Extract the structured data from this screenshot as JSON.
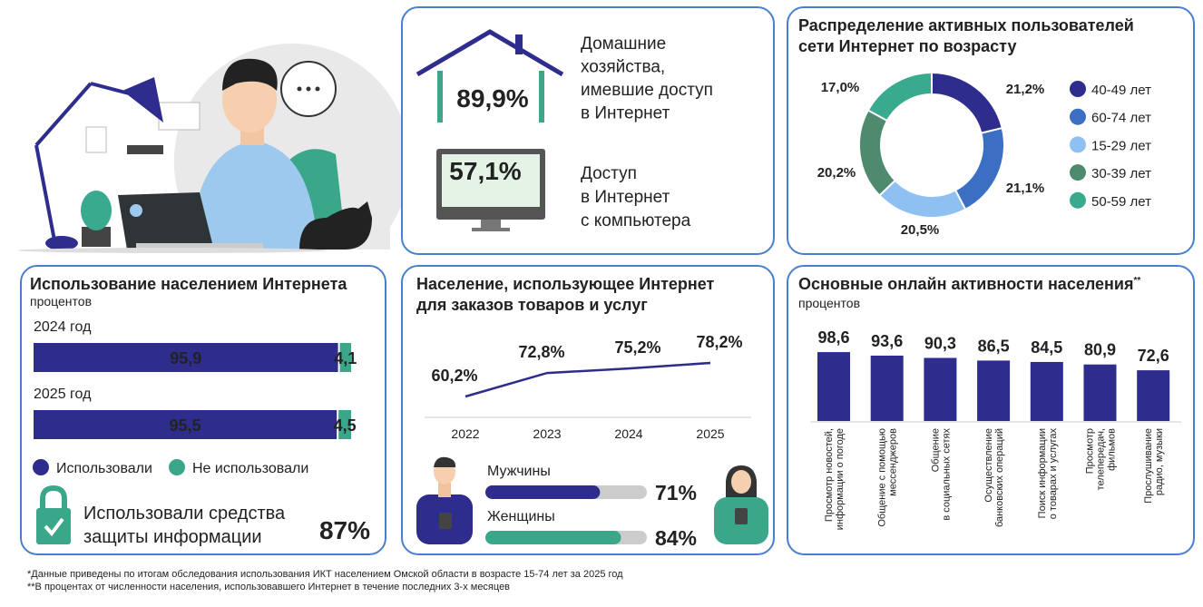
{
  "household": {
    "value_label": "89,9%",
    "lines": [
      "Домашние",
      "хозяйства,",
      "имевшие доступ",
      "в Интернет"
    ]
  },
  "computer": {
    "value_label": "57,1%",
    "lines": [
      "Доступ",
      "в Интернет",
      "с компьютера"
    ]
  },
  "protection": {
    "lines": [
      "Использовали средства",
      "защиты информации"
    ],
    "value_label": "87%"
  },
  "chart_data": [
    {
      "type": "pie",
      "donut": true,
      "title": [
        "Распределение активных пользователей",
        "сети Интернет по возрасту"
      ],
      "categories": [
        "40-49 лет",
        "60-74 лет",
        "15-29 лет",
        "30-39 лет",
        "50-59 лет"
      ],
      "values": [
        21.2,
        21.1,
        20.5,
        20.2,
        17.0
      ],
      "value_labels": [
        "21,2%",
        "21,1%",
        "20,5%",
        "20,2%",
        "17,0%"
      ],
      "colors": [
        "#2e2c8c",
        "#3a6fc4",
        "#8fc0f2",
        "#4d8a6e",
        "#3aaa8e"
      ]
    },
    {
      "type": "stacked-bar",
      "orientation": "horizontal",
      "title": [
        "Использование населением Интернета"
      ],
      "subtitle": "процентов",
      "categories": [
        "2024 год",
        "2025 год"
      ],
      "series": [
        {
          "name": "Использовали",
          "color": "#2e2c8c",
          "values": [
            95.9,
            95.5
          ],
          "value_labels": [
            "95,9",
            "95,5"
          ]
        },
        {
          "name": "Не использовали",
          "color": "#3aa68a",
          "values": [
            4.1,
            4.5
          ],
          "value_labels": [
            "4,1",
            "4,5"
          ]
        }
      ]
    },
    {
      "type": "line",
      "title": [
        "Население, использующее Интернет",
        "для заказов товаров и услуг"
      ],
      "categories": [
        "2022",
        "2023",
        "2024",
        "2025"
      ],
      "values": [
        60.2,
        72.8,
        75.2,
        78.2
      ],
      "value_labels": [
        "60,2%",
        "72,8%",
        "75,2%",
        "78,2%"
      ],
      "color": "#2e2c8c"
    },
    {
      "type": "progress",
      "categories": [
        "Мужчины",
        "Женщины"
      ],
      "values": [
        71,
        84
      ],
      "value_labels": [
        "71%",
        "84%"
      ],
      "colors": [
        "#2e2c8c",
        "#3aa68a"
      ]
    },
    {
      "type": "bar",
      "title": [
        "Основные онлайн активности населения"
      ],
      "title_mark": "**",
      "subtitle": "процентов",
      "categories": [
        [
          "Просмотр новостей,",
          "информации о погоде"
        ],
        [
          "Общение с помощью",
          "мессенджеров"
        ],
        [
          "Общение",
          "в социальных сетях"
        ],
        [
          "Осуществление",
          "банковских операций"
        ],
        [
          "Поиск информации",
          "о товарах и услугах"
        ],
        [
          "Просмотр",
          "телепередач,",
          "фильмов"
        ],
        [
          "Прослушивание",
          "радио, музыки"
        ]
      ],
      "values": [
        98.6,
        93.6,
        90.3,
        86.5,
        84.5,
        80.9,
        72.6
      ],
      "value_labels": [
        "98,6",
        "93,6",
        "90,3",
        "86,5",
        "84,5",
        "80,9",
        "72,6"
      ],
      "color": "#2e2c8c"
    }
  ],
  "footnotes": [
    "*Данные приведены по итогам обследования использования ИКТ населением Омской области в возрасте 15-74 лет за  2025 год",
    "**В процентах от численности населения, использовавшего Интернет в течение последних 3-х месяцев"
  ]
}
